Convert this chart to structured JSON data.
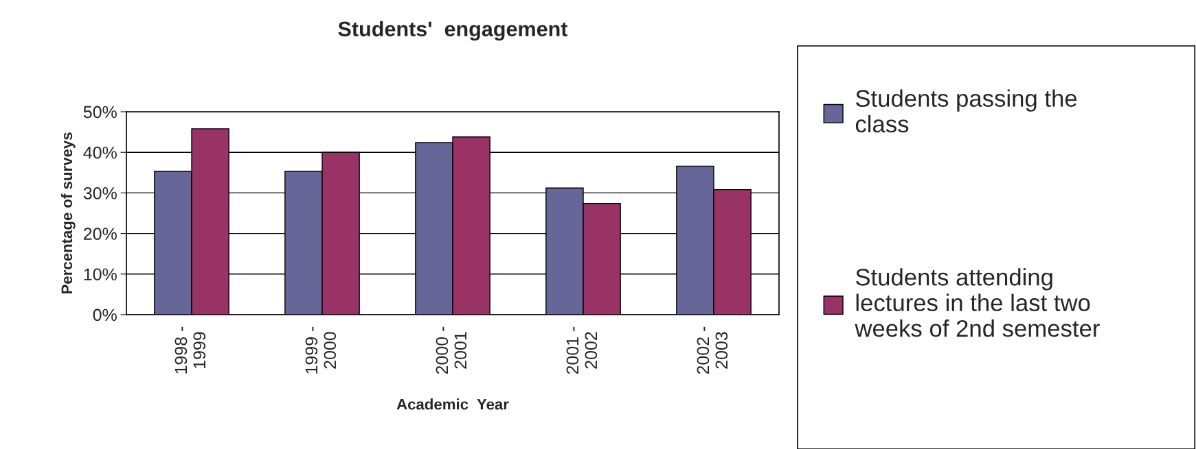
{
  "chart_data": {
    "type": "bar",
    "title": "Students'  engagement",
    "xlabel": "Academic  Year",
    "ylabel": "Percentage of surveys",
    "categories": [
      "1998 - 1999",
      "1999 - 2000",
      "2000 - 2001",
      "2001 - 2002",
      "2002 - 2003"
    ],
    "series": [
      {
        "name": "Students passing the class",
        "color": "#666699",
        "values": [
          35.3,
          35.3,
          42.4,
          31.2,
          36.6
        ]
      },
      {
        "name": "Students attending lectures in the last two weeks of 2nd semester",
        "color": "#993366",
        "values": [
          45.8,
          40.0,
          43.8,
          27.4,
          30.8
        ]
      }
    ],
    "ylim": [
      0,
      50
    ],
    "yticks": [
      {
        "value": 0,
        "label": "0%"
      },
      {
        "value": 10,
        "label": "10%"
      },
      {
        "value": 20,
        "label": "20%"
      },
      {
        "value": 30,
        "label": "30%"
      },
      {
        "value": 40,
        "label": "40%"
      },
      {
        "value": 50,
        "label": "50%"
      }
    ],
    "grid": "y",
    "legend": "right"
  }
}
